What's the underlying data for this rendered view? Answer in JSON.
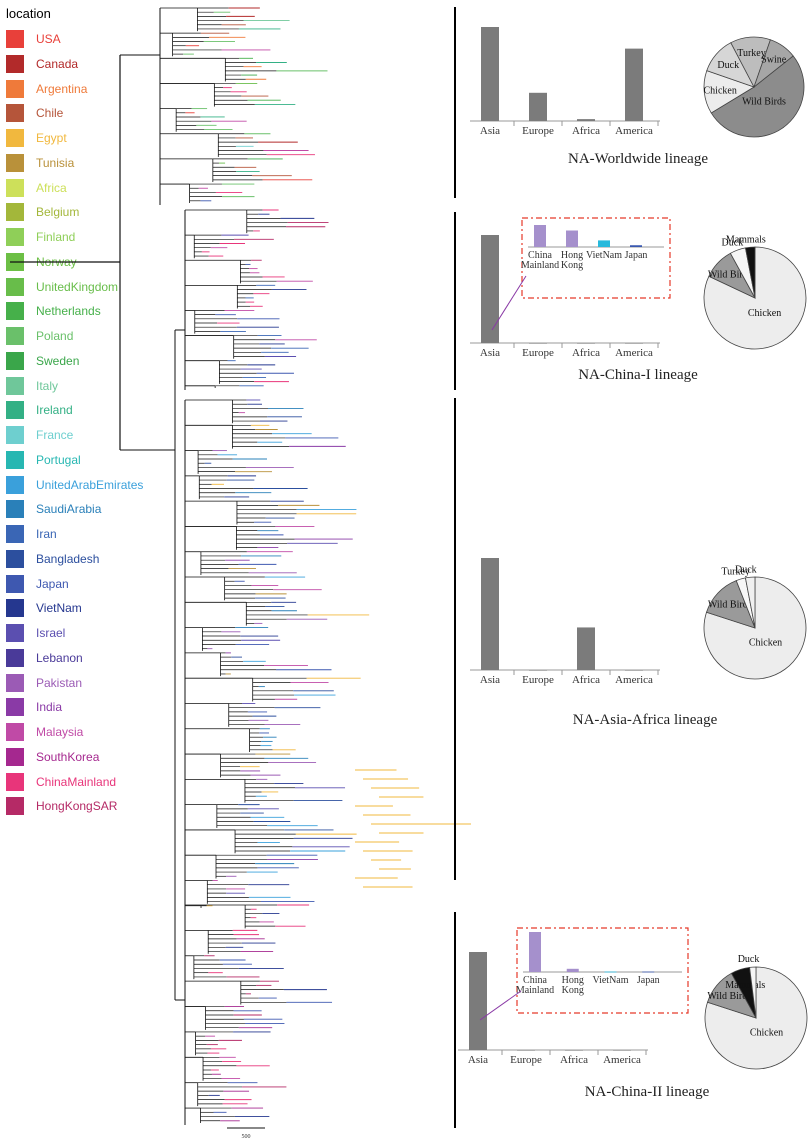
{
  "legend": {
    "title": "location",
    "items": [
      {
        "label": "USA",
        "color": "#e8403a"
      },
      {
        "label": "Canada",
        "color": "#b22a2a"
      },
      {
        "label": "Argentina",
        "color": "#ef7a3a"
      },
      {
        "label": "Chile",
        "color": "#b5553a"
      },
      {
        "label": "Egypt",
        "color": "#f1b83e"
      },
      {
        "label": "Tunisia",
        "color": "#b9913a"
      },
      {
        "label": "Africa",
        "color": "#cde05a"
      },
      {
        "label": "Belgium",
        "color": "#a3b73a"
      },
      {
        "label": "Finland",
        "color": "#8fcf58"
      },
      {
        "label": "Norway",
        "color": "#6cbf45"
      },
      {
        "label": "UnitedKingdom",
        "color": "#68bd4a"
      },
      {
        "label": "Netherlands",
        "color": "#46b04a"
      },
      {
        "label": "Poland",
        "color": "#6ac06a"
      },
      {
        "label": "Sweden",
        "color": "#3aa64a"
      },
      {
        "label": "Italy",
        "color": "#6fc79a"
      },
      {
        "label": "Ireland",
        "color": "#33b085"
      },
      {
        "label": "France",
        "color": "#6ecfcf"
      },
      {
        "label": "Portugal",
        "color": "#27b7b2"
      },
      {
        "label": "UnitedArabEmirates",
        "color": "#3aa0db"
      },
      {
        "label": "SaudiArabia",
        "color": "#2a80b9"
      },
      {
        "label": "Iran",
        "color": "#3a66b5"
      },
      {
        "label": "Bangladesh",
        "color": "#2c4f9e"
      },
      {
        "label": "Japan",
        "color": "#3e58b0"
      },
      {
        "label": "VietNam",
        "color": "#25378f"
      },
      {
        "label": "Israel",
        "color": "#5b4fb0"
      },
      {
        "label": "Lebanon",
        "color": "#4a3a99"
      },
      {
        "label": "Pakistan",
        "color": "#9b5bb5"
      },
      {
        "label": "India",
        "color": "#8a3aa6"
      },
      {
        "label": "Malaysia",
        "color": "#c04aa6"
      },
      {
        "label": "SouthKorea",
        "color": "#a5288f"
      },
      {
        "label": "ChinaMainland",
        "color": "#e8357a"
      },
      {
        "label": "HongKongSAR",
        "color": "#b52a66"
      }
    ]
  },
  "tree": {
    "scale_label": "500"
  },
  "lineages": [
    {
      "title": "NA-Worldwide lineage",
      "bars": [
        {
          "label": "Asia",
          "value": 100
        },
        {
          "label": "Europe",
          "value": 30
        },
        {
          "label": "Africa",
          "value": 2
        },
        {
          "label": "America",
          "value": 77
        }
      ],
      "pie": [
        {
          "label": "Wild Birds",
          "value": 52,
          "color": "#8c8c8c"
        },
        {
          "label": "Chicken",
          "value": 14,
          "color": "#ececec"
        },
        {
          "label": "Duck",
          "value": 12,
          "color": "#d6d6d6"
        },
        {
          "label": "Turkey",
          "value": 13,
          "color": "#bdbdbd"
        },
        {
          "label": "Swine",
          "value": 9,
          "color": "#a6a6a6"
        }
      ]
    },
    {
      "title": "NA-China-I lineage",
      "bars": [
        {
          "label": "Asia",
          "value": 100
        },
        {
          "label": "Europe",
          "value": 0
        },
        {
          "label": "Africa",
          "value": 0
        },
        {
          "label": "America",
          "value": 0
        }
      ],
      "inset": [
        {
          "label": "China Mainland",
          "line1": "China",
          "line2": "Mainland",
          "value": 100,
          "color": "#a590cc"
        },
        {
          "label": "Hong Kong",
          "line1": "Hong",
          "line2": "Kong",
          "value": 75,
          "color": "#a590cc"
        },
        {
          "label": "VietNam",
          "line1": "VietNam",
          "line2": "",
          "value": 30,
          "color": "#27b9dc"
        },
        {
          "label": "Japan",
          "line1": "Japan",
          "line2": "",
          "value": 8,
          "color": "#3a58b0"
        }
      ],
      "pie": [
        {
          "label": "Chicken",
          "value": 82,
          "color": "#ededed"
        },
        {
          "label": "Wild Birds",
          "value": 10,
          "color": "#9a9a9a"
        },
        {
          "label": "Duck",
          "value": 5,
          "color": "#f5f5f5"
        },
        {
          "label": "Mammals",
          "value": 3,
          "color": "#111111"
        }
      ]
    },
    {
      "title": "NA-Asia-Africa lineage",
      "bars": [
        {
          "label": "Asia",
          "value": 100
        },
        {
          "label": "Europe",
          "value": 0
        },
        {
          "label": "Africa",
          "value": 38
        },
        {
          "label": "America",
          "value": 0
        }
      ],
      "pie": [
        {
          "label": "Chicken",
          "value": 80,
          "color": "#ededed"
        },
        {
          "label": "Wild Birds",
          "value": 14,
          "color": "#9a9a9a"
        },
        {
          "label": "Turkey",
          "value": 3,
          "color": "#f7f7f7"
        },
        {
          "label": "Duck",
          "value": 3,
          "color": "#f0f0f0"
        }
      ]
    },
    {
      "title": "NA-China-II lineage",
      "bars": [
        {
          "label": "Asia",
          "value": 100
        },
        {
          "label": "Europe",
          "value": 0
        },
        {
          "label": "Africa",
          "value": 0
        },
        {
          "label": "America",
          "value": 0
        }
      ],
      "inset": [
        {
          "label": "China Mainland",
          "line1": "China",
          "line2": "Mainland",
          "value": 100,
          "color": "#a590cc"
        },
        {
          "label": "Hong Kong",
          "line1": "Hong",
          "line2": "Kong",
          "value": 8,
          "color": "#a590cc"
        },
        {
          "label": "VietNam",
          "line1": "VietNam",
          "line2": "",
          "value": 1,
          "color": "#27b9dc"
        },
        {
          "label": "Japan",
          "line1": "Japan",
          "line2": "",
          "value": 1,
          "color": "#3a58b0"
        }
      ],
      "pie": [
        {
          "label": "Chicken",
          "value": 80,
          "color": "#ededed"
        },
        {
          "label": "Wild Birds",
          "value": 12,
          "color": "#9a9a9a"
        },
        {
          "label": "Mammals",
          "value": 6,
          "color": "#111111"
        },
        {
          "label": "Duck",
          "value": 2,
          "color": "#f5f5f5"
        }
      ]
    }
  ]
}
